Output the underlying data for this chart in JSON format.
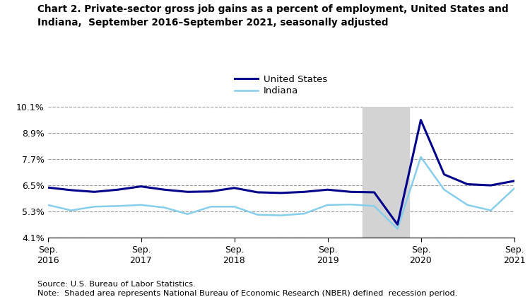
{
  "title": "Chart 2. Private-sector gross job gains as a percent of employment, United States and\nIndiana,  September 2016–September 2021, seasonally adjusted",
  "source_text": "Source: U.S. Bureau of Labor Statistics.",
  "note_text": "Note:  Shaded area represents National Bureau of Economic Research (NBER) defined  recession period.",
  "us_label": "United States",
  "in_label": "Indiana",
  "us_color": "#00008B",
  "in_color": "#87CEEB",
  "recession_color": "#D3D3D3",
  "recession_start": 13.5,
  "recession_end": 15.5,
  "x_tick_positions": [
    0,
    4,
    8,
    12,
    16,
    20
  ],
  "x_tick_labels": [
    "Sep.\n2016",
    "Sep.\n2017",
    "Sep.\n2018",
    "Sep.\n2019",
    "Sep.\n2020",
    "Sep.\n2021"
  ],
  "y_ticks": [
    4.1,
    5.3,
    6.5,
    7.7,
    8.9,
    10.1
  ],
  "ylim": [
    4.1,
    10.1
  ],
  "xlim": [
    0,
    20
  ],
  "us_data": [
    6.4,
    6.28,
    6.2,
    6.3,
    6.45,
    6.3,
    6.2,
    6.22,
    6.38,
    6.18,
    6.15,
    6.2,
    6.3,
    6.2,
    6.18,
    4.7,
    9.5,
    7.0,
    6.55,
    6.5,
    6.7
  ],
  "in_data": [
    5.6,
    5.35,
    5.52,
    5.55,
    5.6,
    5.48,
    5.18,
    5.52,
    5.52,
    5.15,
    5.12,
    5.2,
    5.6,
    5.62,
    5.55,
    4.5,
    7.8,
    6.3,
    5.6,
    5.35,
    6.35
  ],
  "n_points": 21
}
